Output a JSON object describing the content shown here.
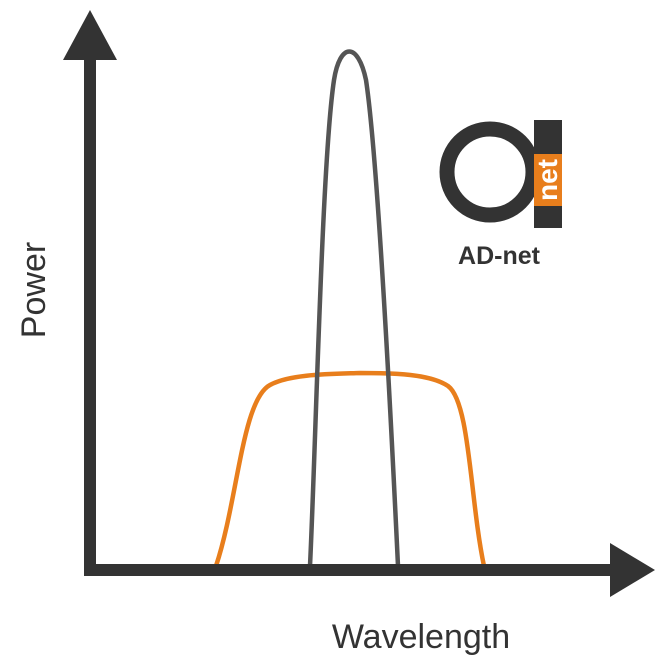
{
  "axes": {
    "x_label": "Wavelength",
    "y_label": "Power",
    "color": "#333333"
  },
  "curves": [
    {
      "shape": "narrow-peak",
      "color": "#555555"
    },
    {
      "shape": "flat-top-broad",
      "color": "#e87e1c"
    }
  ],
  "logo": {
    "mark_word": "net",
    "caption": "AD-net",
    "dark_color": "#333333",
    "accent_color": "#e87e1c"
  }
}
